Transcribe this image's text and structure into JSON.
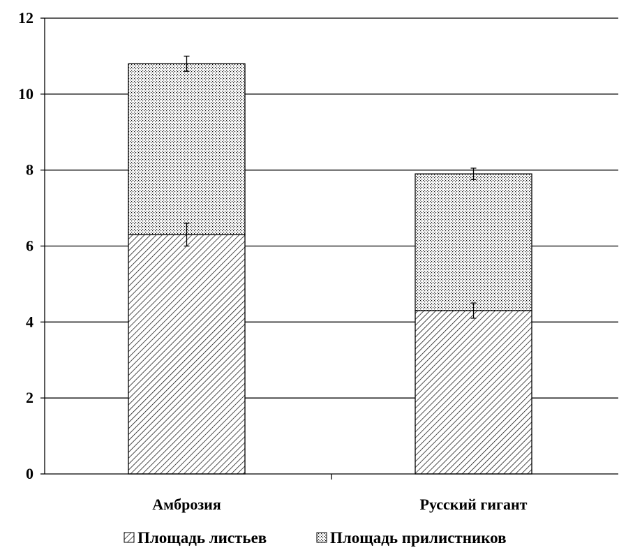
{
  "chart_data": {
    "type": "bar",
    "stacked": true,
    "categories": [
      "Амброзия",
      "Русский гигант"
    ],
    "series": [
      {
        "name": "Площадь листьев",
        "values": [
          6.3,
          4.3
        ],
        "error": [
          0.3,
          0.2
        ],
        "pattern": "diagonal-hatch"
      },
      {
        "name": "Площадь прилистников",
        "values": [
          4.5,
          3.6
        ],
        "error": [
          0.2,
          0.15
        ],
        "pattern": "dots"
      }
    ],
    "title": "",
    "xlabel": "",
    "ylabel": "",
    "ylim": [
      0,
      12
    ],
    "yticks": [
      "0",
      "2",
      "4",
      "6",
      "8",
      "10",
      "12"
    ],
    "grid": true,
    "legend_position": "bottom"
  }
}
